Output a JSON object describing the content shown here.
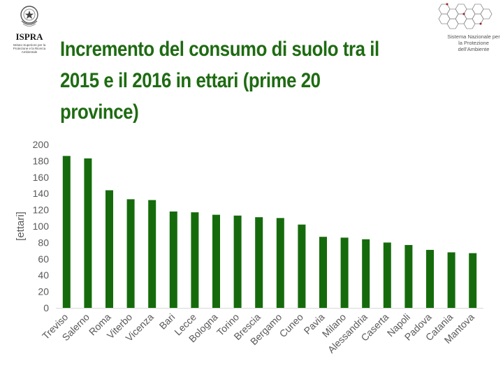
{
  "header": {
    "ispra_name": "ISPRA",
    "ispra_subtitle": "Istituto Superiore per la Protezione e la Ricerca Ambientale",
    "snpa_name": "Sistema Nazionale per la Protezione dell'Ambiente",
    "title": "Incremento del consumo di suolo tra il 2015 e il 2016 in ettari (prime 20 province)"
  },
  "colors": {
    "bar": "#156b0c",
    "title": "#1e6b12",
    "axis_text": "#595959",
    "axis_line": "#d9d9d9",
    "snpa_accent": "#9b1c2c"
  },
  "chart_data": {
    "type": "bar",
    "title": "",
    "xlabel": "",
    "ylabel": "[ettari]",
    "ylim": [
      0,
      200
    ],
    "yticks": [
      "0",
      "20",
      "40",
      "60",
      "80",
      "100",
      "120",
      "140",
      "160",
      "180",
      "200"
    ],
    "grid": false,
    "legend": "none",
    "categories": [
      "Treviso",
      "Salerno",
      "Roma",
      "Viterbo",
      "Vicenza",
      "Bari",
      "Lecce",
      "Bologna",
      "Torino",
      "Brescia",
      "Bergamo",
      "Cuneo",
      "Pavia",
      "Milano",
      "Alessandria",
      "Caserta",
      "Napoli",
      "Padova",
      "Catania",
      "Mantova"
    ],
    "values": [
      186,
      183,
      144,
      133,
      132,
      118,
      117,
      114,
      113,
      111,
      110,
      102,
      87,
      86,
      84,
      80,
      77,
      71,
      68,
      67
    ]
  }
}
